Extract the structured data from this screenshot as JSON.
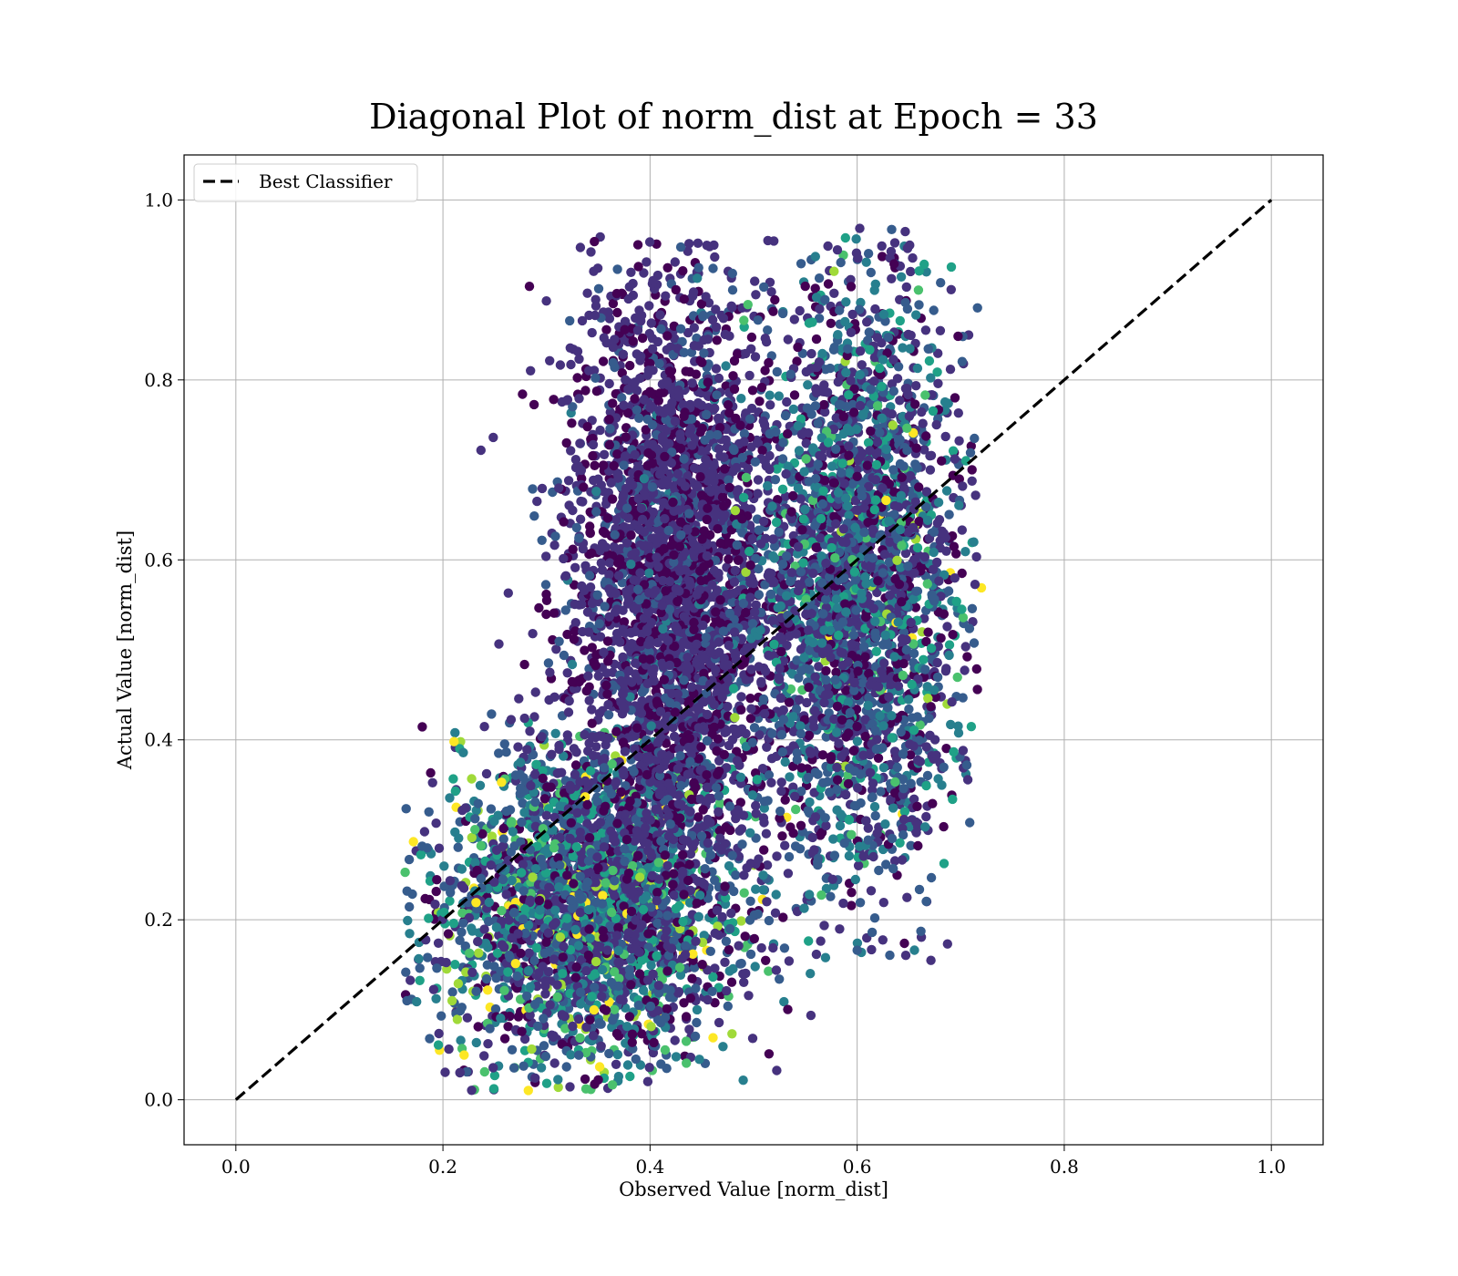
{
  "chart_data": {
    "type": "scatter",
    "title": "Diagonal Plot of norm_dist at Epoch = 33",
    "xlabel": "Observed Value [norm_dist]",
    "ylabel": "Actual Value [norm_dist]",
    "xlim": [
      -0.05,
      1.05
    ],
    "ylim": [
      -0.05,
      1.05
    ],
    "xticks": [
      "0.0",
      "0.2",
      "0.4",
      "0.6",
      "0.8",
      "1.0"
    ],
    "yticks": [
      "0.0",
      "0.2",
      "0.4",
      "0.6",
      "0.8",
      "1.0"
    ],
    "grid": true,
    "colormap": "viridis",
    "legend": {
      "placement": "top-left",
      "entries": [
        "Best Classifier"
      ]
    },
    "reference_line": {
      "name": "Best Classifier",
      "x": [
        0,
        1
      ],
      "y": [
        0,
        1
      ],
      "style": "dashed",
      "color": "#000000"
    },
    "clusters": [
      {
        "label_hint": "lower-left band",
        "x_range": [
          0.17,
          0.55
        ],
        "y_range": [
          0.01,
          0.42
        ],
        "tone": "teal-blue"
      },
      {
        "label_hint": "upper-middle band",
        "x_range": [
          0.25,
          0.55
        ],
        "y_range": [
          0.2,
          0.96
        ],
        "tone": "dark-purple"
      },
      {
        "label_hint": "right band",
        "x_range": [
          0.5,
          0.72
        ],
        "y_range": [
          0.15,
          0.97
        ],
        "tone": "blue-teal"
      }
    ],
    "approx_point_count": 9000,
    "colors": {
      "viridis": [
        "#440154",
        "#46327e",
        "#365c8d",
        "#277f8e",
        "#1fa187",
        "#4ac16d",
        "#a0da39",
        "#fde725"
      ],
      "grid": "#b0b0b0",
      "line": "#000000"
    }
  }
}
